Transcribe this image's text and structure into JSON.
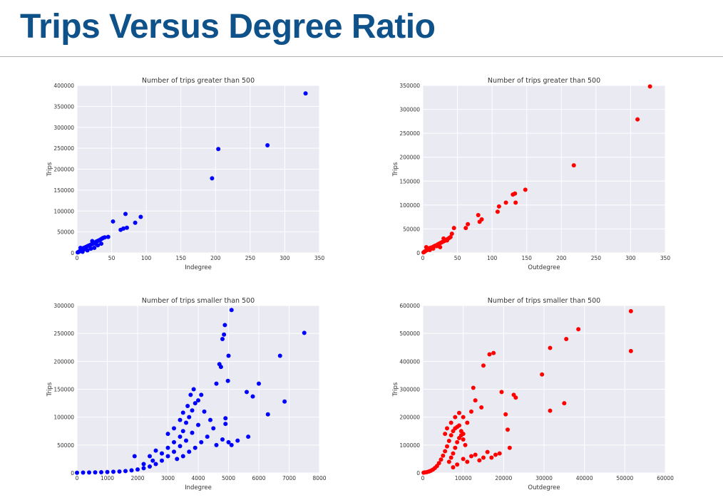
{
  "slide": {
    "title": "Trips Versus Degree Ratio"
  },
  "colors": {
    "title": "#0f5189",
    "blue_series": "#0000ff",
    "red_series": "#ff0000",
    "plot_background": "#eaeaf2"
  },
  "chart_data": [
    {
      "type": "scatter",
      "title": "Number of trips greater than 500",
      "xlabel": "Indegree",
      "ylabel": "Trips",
      "xlim": [
        0,
        350
      ],
      "ylim": [
        0,
        400000
      ],
      "xticks": [
        0,
        50,
        100,
        150,
        200,
        250,
        300,
        350
      ],
      "yticks": [
        0,
        50000,
        100000,
        150000,
        200000,
        250000,
        300000,
        350000,
        400000
      ],
      "color": "#0000ff",
      "points": [
        [
          1,
          1000
        ],
        [
          2,
          2000
        ],
        [
          3,
          3000
        ],
        [
          4,
          4000
        ],
        [
          5,
          5500
        ],
        [
          6,
          7000
        ],
        [
          7,
          8500
        ],
        [
          8,
          10000
        ],
        [
          9,
          11000
        ],
        [
          10,
          12000
        ],
        [
          12,
          13500
        ],
        [
          14,
          15000
        ],
        [
          16,
          16500
        ],
        [
          18,
          18000
        ],
        [
          20,
          19500
        ],
        [
          22,
          21000
        ],
        [
          24,
          23000
        ],
        [
          26,
          25000
        ],
        [
          28,
          27000
        ],
        [
          30,
          28500
        ],
        [
          32,
          30000
        ],
        [
          34,
          32000
        ],
        [
          36,
          34000
        ],
        [
          38,
          36000
        ],
        [
          40,
          37000
        ],
        [
          45,
          38000
        ],
        [
          8,
          2500
        ],
        [
          15,
          6000
        ],
        [
          25,
          12000
        ],
        [
          35,
          22000
        ],
        [
          5,
          12000
        ],
        [
          10,
          8000
        ],
        [
          20,
          10000
        ],
        [
          22,
          28000
        ],
        [
          27,
          22000
        ],
        [
          30,
          18000
        ],
        [
          52,
          75000
        ],
        [
          63,
          55000
        ],
        [
          67,
          58000
        ],
        [
          70,
          93000
        ],
        [
          72,
          60000
        ],
        [
          84,
          72000
        ],
        [
          92,
          86000
        ],
        [
          195,
          178000
        ],
        [
          204,
          248000
        ],
        [
          275,
          257000
        ],
        [
          330,
          381000
        ]
      ]
    },
    {
      "type": "scatter",
      "title": "Number of trips greater than 500",
      "xlabel": "Outdegree",
      "ylabel": "Trips",
      "xlim": [
        0,
        350
      ],
      "ylim": [
        0,
        350000
      ],
      "xticks": [
        0,
        50,
        100,
        150,
        200,
        250,
        300,
        350
      ],
      "yticks": [
        0,
        50000,
        100000,
        150000,
        200000,
        250000,
        300000,
        350000
      ],
      "color": "#ff0000",
      "points": [
        [
          1,
          1000
        ],
        [
          2,
          2000
        ],
        [
          3,
          3000
        ],
        [
          4,
          4000
        ],
        [
          5,
          5000
        ],
        [
          6,
          6000
        ],
        [
          7,
          7000
        ],
        [
          8,
          8000
        ],
        [
          9,
          9000
        ],
        [
          10,
          10000
        ],
        [
          12,
          11000
        ],
        [
          14,
          12000
        ],
        [
          16,
          13500
        ],
        [
          18,
          15000
        ],
        [
          20,
          16000
        ],
        [
          22,
          18000
        ],
        [
          24,
          19500
        ],
        [
          26,
          21000
        ],
        [
          28,
          22500
        ],
        [
          30,
          24000
        ],
        [
          32,
          25500
        ],
        [
          34,
          27000
        ],
        [
          36,
          29000
        ],
        [
          38,
          31000
        ],
        [
          40,
          33000
        ],
        [
          5,
          12000
        ],
        [
          10,
          6000
        ],
        [
          15,
          9000
        ],
        [
          20,
          14000
        ],
        [
          25,
          12000
        ],
        [
          30,
          30000
        ],
        [
          35,
          26000
        ],
        [
          42,
          40000
        ],
        [
          45,
          52000
        ],
        [
          62,
          52000
        ],
        [
          65,
          60000
        ],
        [
          80,
          79000
        ],
        [
          82,
          65000
        ],
        [
          85,
          70000
        ],
        [
          108,
          86000
        ],
        [
          110,
          97000
        ],
        [
          120,
          105000
        ],
        [
          130,
          122000
        ],
        [
          133,
          124000
        ],
        [
          134,
          105000
        ],
        [
          148,
          132000
        ],
        [
          218,
          183000
        ],
        [
          310,
          279000
        ],
        [
          328,
          348000
        ]
      ]
    },
    {
      "type": "scatter",
      "title": "Number of trips smaller than 500",
      "xlabel": "Indegree",
      "ylabel": "Trips",
      "xlim": [
        0,
        8000
      ],
      "ylim": [
        0,
        300000
      ],
      "xticks": [
        0,
        1000,
        2000,
        3000,
        4000,
        5000,
        6000,
        7000,
        8000
      ],
      "yticks": [
        0,
        50000,
        100000,
        150000,
        200000,
        250000,
        300000
      ],
      "color": "#0000ff",
      "points": [
        [
          0,
          300
        ],
        [
          200,
          600
        ],
        [
          400,
          800
        ],
        [
          600,
          1000
        ],
        [
          800,
          1300
        ],
        [
          1000,
          1600
        ],
        [
          1200,
          2000
        ],
        [
          1400,
          2600
        ],
        [
          1600,
          3400
        ],
        [
          1800,
          4600
        ],
        [
          2000,
          6200
        ],
        [
          2200,
          8500
        ],
        [
          2400,
          11500
        ],
        [
          2600,
          16000
        ],
        [
          2800,
          22000
        ],
        [
          3000,
          30000
        ],
        [
          3200,
          38000
        ],
        [
          3400,
          48000
        ],
        [
          3600,
          58000
        ],
        [
          3800,
          72000
        ],
        [
          4000,
          86000
        ],
        [
          1900,
          30000
        ],
        [
          2200,
          16000
        ],
        [
          2500,
          22000
        ],
        [
          2800,
          35000
        ],
        [
          3000,
          45000
        ],
        [
          3200,
          55000
        ],
        [
          3400,
          65000
        ],
        [
          3500,
          75000
        ],
        [
          3600,
          90000
        ],
        [
          3700,
          100000
        ],
        [
          3800,
          112000
        ],
        [
          3900,
          125000
        ],
        [
          4000,
          130000
        ],
        [
          4100,
          140000
        ],
        [
          3300,
          25000
        ],
        [
          3500,
          30000
        ],
        [
          3700,
          38000
        ],
        [
          3900,
          45000
        ],
        [
          4100,
          55000
        ],
        [
          4300,
          65000
        ],
        [
          4500,
          80000
        ],
        [
          2600,
          40000
        ],
        [
          2400,
          30000
        ],
        [
          3000,
          70000
        ],
        [
          3200,
          80000
        ],
        [
          3400,
          95000
        ],
        [
          3500,
          108000
        ],
        [
          3650,
          120000
        ],
        [
          3750,
          140000
        ],
        [
          3850,
          150000
        ],
        [
          4200,
          110000
        ],
        [
          4400,
          95000
        ],
        [
          4600,
          50000
        ],
        [
          4800,
          60000
        ],
        [
          5000,
          55000
        ],
        [
          5100,
          50000
        ],
        [
          5300,
          58000
        ],
        [
          4600,
          160000
        ],
        [
          4700,
          195000
        ],
        [
          4750,
          190000
        ],
        [
          4800,
          240000
        ],
        [
          4850,
          248000
        ],
        [
          4880,
          265000
        ],
        [
          4900,
          98000
        ],
        [
          4900,
          88000
        ],
        [
          5000,
          210000
        ],
        [
          4980,
          165000
        ],
        [
          5100,
          292000
        ],
        [
          5600,
          145000
        ],
        [
          5650,
          65000
        ],
        [
          5800,
          137000
        ],
        [
          6000,
          160000
        ],
        [
          6300,
          105000
        ],
        [
          6700,
          210000
        ],
        [
          6850,
          128000
        ],
        [
          7500,
          251000
        ]
      ]
    },
    {
      "type": "scatter",
      "title": "Number of trips smaller than 500",
      "xlabel": "Outdegree",
      "ylabel": "Trips",
      "xlim": [
        0,
        60000
      ],
      "ylim": [
        0,
        600000
      ],
      "xticks": [
        0,
        10000,
        20000,
        30000,
        40000,
        50000,
        60000
      ],
      "yticks": [
        0,
        100000,
        200000,
        300000,
        400000,
        500000,
        600000
      ],
      "color": "#ff0000",
      "points": [
        [
          200,
          1000
        ],
        [
          500,
          2000
        ],
        [
          1000,
          3000
        ],
        [
          1500,
          5000
        ],
        [
          2000,
          8000
        ],
        [
          2500,
          12000
        ],
        [
          3000,
          18000
        ],
        [
          3500,
          25000
        ],
        [
          4000,
          35000
        ],
        [
          4500,
          48000
        ],
        [
          5000,
          62000
        ],
        [
          5500,
          78000
        ],
        [
          6000,
          95000
        ],
        [
          6500,
          115000
        ],
        [
          7000,
          135000
        ],
        [
          7500,
          150000
        ],
        [
          8000,
          160000
        ],
        [
          8500,
          165000
        ],
        [
          9000,
          170000
        ],
        [
          9500,
          150000
        ],
        [
          10000,
          140000
        ],
        [
          6500,
          40000
        ],
        [
          7000,
          55000
        ],
        [
          7500,
          70000
        ],
        [
          8000,
          90000
        ],
        [
          8500,
          110000
        ],
        [
          9000,
          125000
        ],
        [
          9500,
          135000
        ],
        [
          10000,
          120000
        ],
        [
          10500,
          100000
        ],
        [
          5500,
          140000
        ],
        [
          6000,
          160000
        ],
        [
          7000,
          180000
        ],
        [
          8000,
          200000
        ],
        [
          9000,
          215000
        ],
        [
          10000,
          200000
        ],
        [
          11000,
          180000
        ],
        [
          7500,
          20000
        ],
        [
          8500,
          30000
        ],
        [
          10000,
          50000
        ],
        [
          11000,
          40000
        ],
        [
          12000,
          60000
        ],
        [
          13000,
          65000
        ],
        [
          14000,
          45000
        ],
        [
          15000,
          55000
        ],
        [
          16000,
          75000
        ],
        [
          17000,
          55000
        ],
        [
          18000,
          65000
        ],
        [
          19000,
          70000
        ],
        [
          12000,
          220000
        ],
        [
          12500,
          305000
        ],
        [
          13000,
          260000
        ],
        [
          14500,
          235000
        ],
        [
          15000,
          385000
        ],
        [
          16500,
          425000
        ],
        [
          17500,
          430000
        ],
        [
          19500,
          290000
        ],
        [
          20500,
          210000
        ],
        [
          21000,
          155000
        ],
        [
          21500,
          90000
        ],
        [
          22500,
          280000
        ],
        [
          23000,
          270000
        ],
        [
          29500,
          353000
        ],
        [
          31500,
          448000
        ],
        [
          31500,
          223000
        ],
        [
          35000,
          250000
        ],
        [
          35500,
          480000
        ],
        [
          38500,
          515000
        ],
        [
          51500,
          580000
        ],
        [
          51500,
          437000
        ]
      ]
    }
  ]
}
